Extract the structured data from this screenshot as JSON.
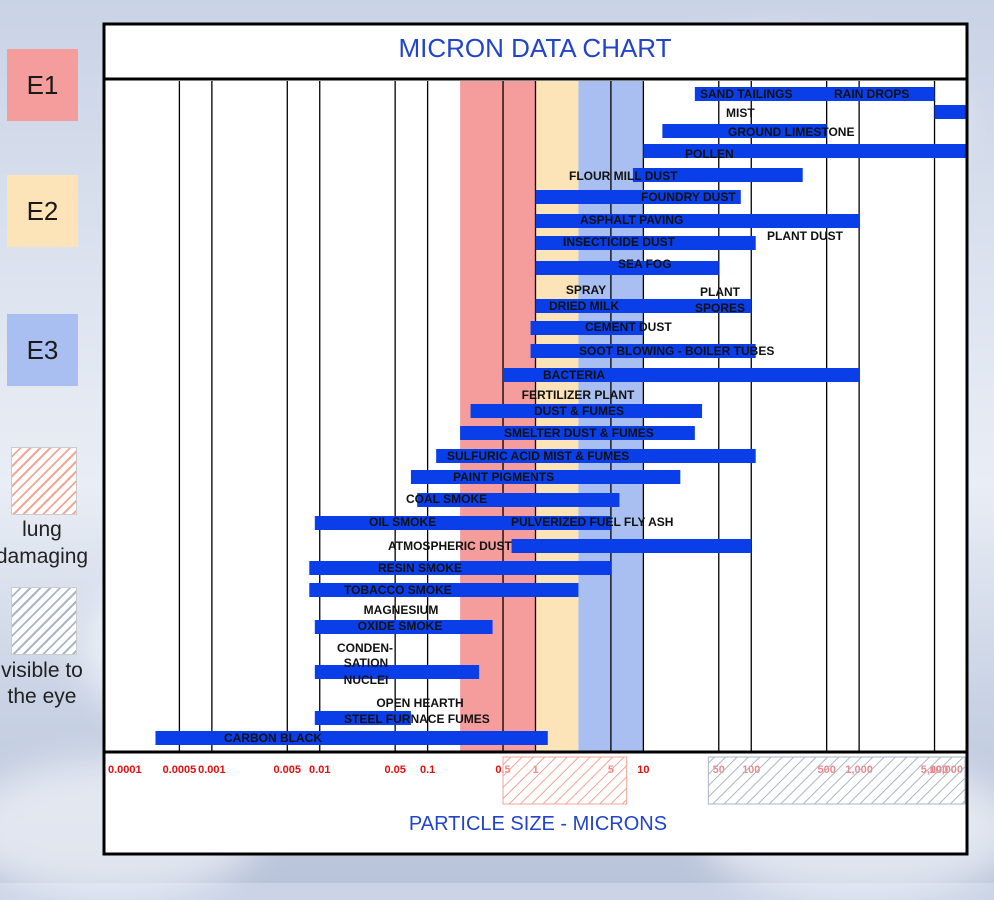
{
  "legend": {
    "e1": {
      "label": "E1",
      "color": "#f59c9c"
    },
    "e2": {
      "label": "E2",
      "color": "#fde3b8"
    },
    "e3": {
      "label": "E3",
      "color": "#a9bff2"
    },
    "lung": {
      "lines": [
        "lung",
        "damaging"
      ]
    },
    "visible": {
      "lines": [
        "visible to",
        "the eye"
      ]
    }
  },
  "chart_data": {
    "type": "bar",
    "title": "MICRON DATA CHART",
    "xlabel": "PARTICLE SIZE - MICRONS",
    "xscale": "log",
    "xlim": [
      0.0001,
      10000
    ],
    "bar_color": "#0a3ee8",
    "gridlines": [
      0.0001,
      0.0005,
      0.001,
      0.005,
      0.01,
      0.05,
      0.1,
      0.5,
      1,
      5,
      10,
      50,
      100,
      500,
      1000,
      5000,
      10000
    ],
    "ticks": [
      {
        "value": 0.0001,
        "label": "0.0001"
      },
      {
        "value": 0.0005,
        "label": "0.0005"
      },
      {
        "value": 0.001,
        "label": "0.001"
      },
      {
        "value": 0.005,
        "label": "0.005"
      },
      {
        "value": 0.01,
        "label": "0.01"
      },
      {
        "value": 0.05,
        "label": "0.05"
      },
      {
        "value": 0.1,
        "label": "0.1"
      },
      {
        "value": 0.5,
        "label": "0.5"
      },
      {
        "value": 1,
        "label": "1"
      },
      {
        "value": 5,
        "label": "5"
      },
      {
        "value": 10,
        "label": "10"
      },
      {
        "value": 50,
        "label": "50"
      },
      {
        "value": 100,
        "label": "100"
      },
      {
        "value": 500,
        "label": "500"
      },
      {
        "value": 1000,
        "label": "1,000"
      },
      {
        "value": 5000,
        "label": "5,000"
      },
      {
        "value": 10000,
        "label": "10,000"
      }
    ],
    "zones": [
      {
        "name": "E1",
        "from": 0.2,
        "to": 1,
        "color": "#f59c9c"
      },
      {
        "name": "E2",
        "from": 1,
        "to": 2.5,
        "color": "#fde3b8"
      },
      {
        "name": "E3",
        "from": 2.5,
        "to": 10,
        "color": "#a9bff2"
      }
    ],
    "hatch_ranges": [
      {
        "name": "lung damaging",
        "from": 0.5,
        "to": 7,
        "color": "#f3a596"
      },
      {
        "name": "visible to the eye",
        "from": 40,
        "to": 10000,
        "color": "#aab5c8"
      }
    ],
    "series": [
      {
        "label": "SAND TAILINGS",
        "from": 30,
        "to": 5000
      },
      {
        "label": "RAIN DROPS",
        "from": 5000,
        "to": 10000
      },
      {
        "label": "MIST",
        "from": 15,
        "to": 500
      },
      {
        "label": "GROUND LIMESTONE",
        "from": 10,
        "to": 10000
      },
      {
        "label": "POLLEN",
        "from": 8,
        "to": 300
      },
      {
        "label": "FLOUR MILL DUST",
        "from": 1,
        "to": 80
      },
      {
        "label": "FOUNDRY DUST",
        "from": 1,
        "to": 1000
      },
      {
        "label": "ASPHALT PAVING",
        "from": 1,
        "to": 110
      },
      {
        "label": "INSECTICIDE DUST",
        "from": 1,
        "to": 50
      },
      {
        "label": "SEA FOG",
        "from": 1,
        "to": 100
      },
      {
        "label": "SPRAY DRIED MILK",
        "from": 0.9,
        "to": 10
      },
      {
        "label": "CEMENT DUST",
        "from": 0.9,
        "to": 110
      },
      {
        "label": "SOOT BLOWING - BOILER TUBES",
        "from": 0.5,
        "to": 1000
      },
      {
        "label": "BACTERIA",
        "from": 0.25,
        "to": 35
      },
      {
        "label": "FERTILIZER PLANT DUST & FUMES",
        "from": 0.2,
        "to": 30
      },
      {
        "label": "SMELTER DUST & FUMES",
        "from": 0.12,
        "to": 110
      },
      {
        "label": "SULFURIC ACID MIST & FUMES",
        "from": 0.07,
        "to": 22
      },
      {
        "label": "PAINT PIGMENTS",
        "from": 0.08,
        "to": 6
      },
      {
        "label": "COAL SMOKE",
        "from": 0.01,
        "to": 5
      },
      {
        "label": "OIL SMOKE",
        "from": 0.009,
        "to": 0.6
      },
      {
        "label": "PULVERIZED FUEL FLY ASH",
        "from": 0.6,
        "to": 100
      },
      {
        "label": "ATMOSPHERIC DUST",
        "from": 0.008,
        "to": 5
      },
      {
        "label": "RESIN SMOKE",
        "from": 0.008,
        "to": 2.5
      },
      {
        "label": "TOBACCO SMOKE",
        "from": 0.009,
        "to": 0.4
      },
      {
        "label": "MAGNESIUM OXIDE SMOKE",
        "from": 0.009,
        "to": 0.3
      },
      {
        "label": "CONDENSATION NUCLEI",
        "from": 0.009,
        "to": 0.07
      },
      {
        "label": "OPEN HEARTH STEEL FURNACE FUMES",
        "from": 0.007,
        "to": 1.3
      },
      {
        "label": "CARBON BLACK",
        "from": 0.0003,
        "to": 0.03
      }
    ],
    "annotations": [
      {
        "text": "SAND TAILINGS"
      },
      {
        "text": "RAIN DROPS"
      },
      {
        "text": "MIST"
      },
      {
        "text": "GROUND LIMESTONE"
      },
      {
        "text": "POLLEN"
      },
      {
        "text": "FLOUR MILL DUST"
      },
      {
        "text": "FOUNDRY DUST"
      },
      {
        "text": "ASPHALT PAVING"
      },
      {
        "text": "PLANT DUST"
      },
      {
        "text": "INSECTICIDE DUST"
      },
      {
        "text": "SEA FOG"
      },
      {
        "text": "SPRAY"
      },
      {
        "text": "PLANT"
      },
      {
        "text": "DRIED MILK"
      },
      {
        "text": "SPORES"
      },
      {
        "text": "CEMENT DUST"
      },
      {
        "text": "SOOT BLOWING - BOILER TUBES"
      },
      {
        "text": "BACTERIA"
      },
      {
        "text": "FERTILIZER PLANT"
      },
      {
        "text": "DUST & FUMES"
      },
      {
        "text": "SMELTER DUST & FUMES"
      },
      {
        "text": "SULFURIC ACID MIST & FUMES"
      },
      {
        "text": "PAINT PIGMENTS"
      },
      {
        "text": "COAL SMOKE"
      },
      {
        "text": "OIL SMOKE"
      },
      {
        "text": "PULVERIZED FUEL FLY ASH"
      },
      {
        "text": "ATMOSPHERIC DUST"
      },
      {
        "text": "RESIN SMOKE"
      },
      {
        "text": "TOBACCO SMOKE"
      },
      {
        "text": "MAGNESIUM"
      },
      {
        "text": "OXIDE SMOKE"
      },
      {
        "text": "CONDEN-"
      },
      {
        "text": "SATION"
      },
      {
        "text": "NUCLEI"
      },
      {
        "text": "OPEN HEARTH"
      },
      {
        "text": "STEEL FURNACE FUMES"
      },
      {
        "text": "CARBON BLACK"
      }
    ]
  }
}
